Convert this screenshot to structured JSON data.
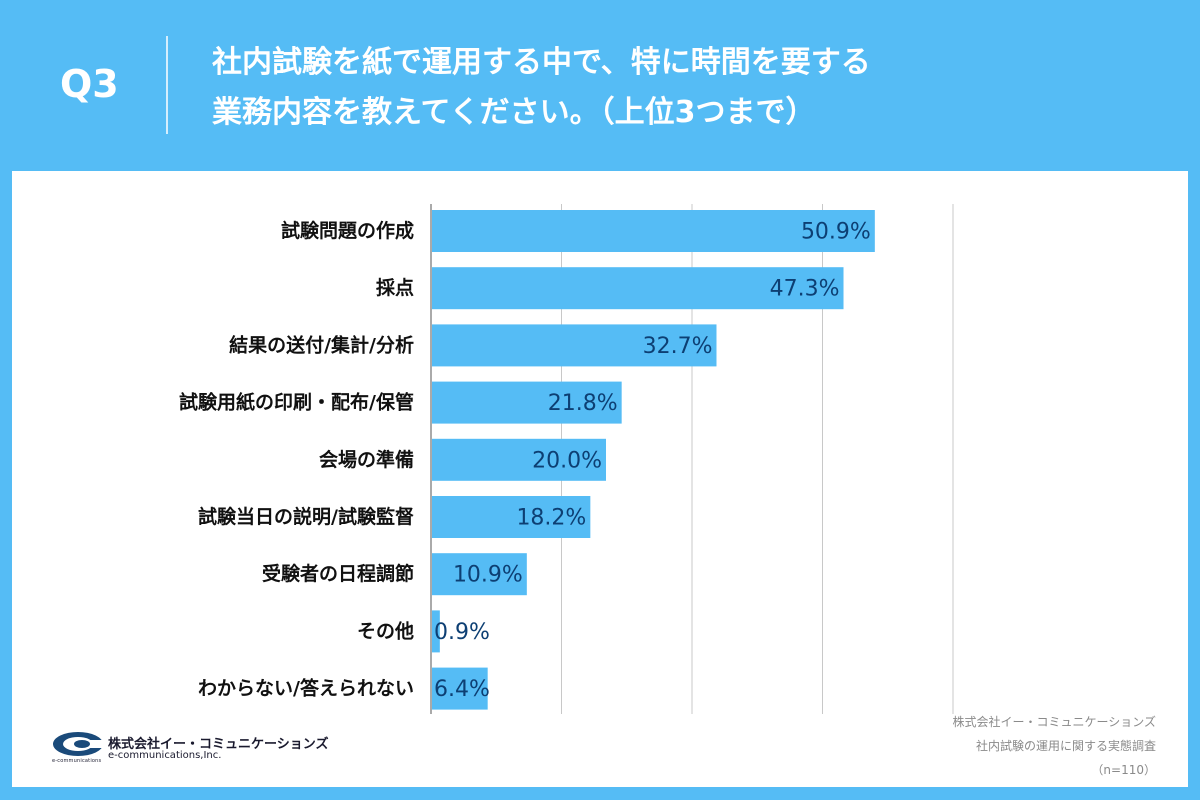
{
  "header": {
    "question_number": "Q3",
    "title_lines": [
      "社内試験を紙で運用する中で、特に時間を要する",
      "業務内容を教えてください。（上位3つまで）"
    ]
  },
  "colors": {
    "background": "#55bcf5",
    "bar": "#55bcf5",
    "bar_label": "#0d3f73",
    "grid": "#c8c8c8"
  },
  "chart_data": {
    "type": "bar",
    "orientation": "horizontal",
    "categories": [
      "試験問題の作成",
      "採点",
      "結果の送付/集計/分析",
      "試験用紙の印刷・配布/保管",
      "会場の準備",
      "試験当日の説明/試験監督",
      "受験者の日程調節",
      "その他",
      "わからない/答えられない"
    ],
    "values": [
      50.9,
      47.3,
      32.7,
      21.8,
      20.0,
      18.2,
      10.9,
      0.9,
      6.4
    ],
    "value_labels": [
      "50.9%",
      "47.3%",
      "32.7%",
      "21.8%",
      "20.0%",
      "18.2%",
      "10.9%",
      "0.9%",
      "6.4%"
    ],
    "xlim": [
      0,
      60
    ],
    "gridlines": [
      15,
      30,
      45,
      60
    ],
    "grid": true,
    "legend": "none"
  },
  "footer": {
    "logo_name": "株式会社イー・コミュニケーションズ",
    "logo_en": "e-communications,Inc.",
    "logo_tiny": "e-communications",
    "source_lines": [
      "株式会社イー・コミュニケーションズ",
      "社内試験の運用に関する実態調査",
      "（n=110）"
    ]
  }
}
